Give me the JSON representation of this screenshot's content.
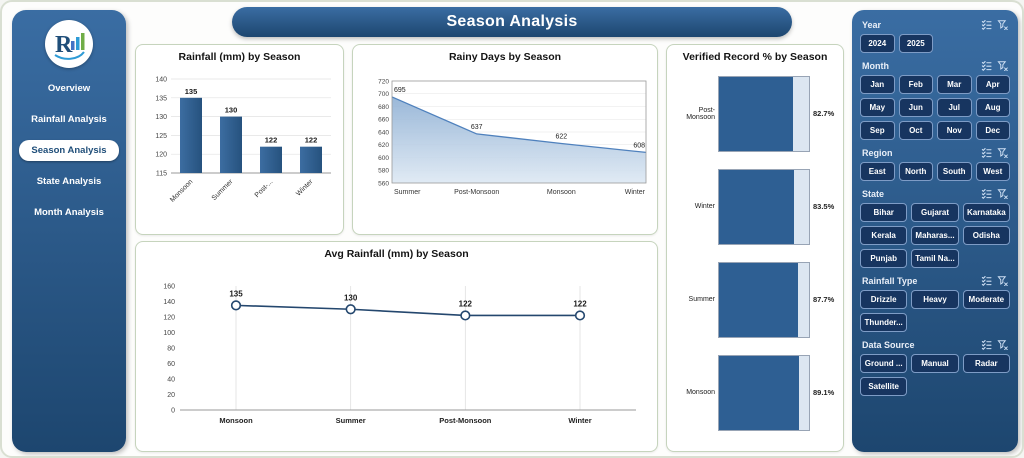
{
  "header": {
    "title": "Season Analysis"
  },
  "logo": {
    "letter": "R"
  },
  "colors": {
    "navy": "#1F4E79",
    "panel_top": "#3A6DA3",
    "panel_bottom": "#1D466F",
    "button": "#173560",
    "bar": "#2E5F93",
    "track": "#DCE6F1"
  },
  "sidebar": {
    "items": [
      {
        "label": "Overview",
        "active": false
      },
      {
        "label": "Rainfall Analysis",
        "active": false
      },
      {
        "label": "Season Analysis",
        "active": true
      },
      {
        "label": "State Analysis",
        "active": false
      },
      {
        "label": "Month Analysis",
        "active": false
      }
    ]
  },
  "filters": {
    "sections": [
      {
        "title": "Year",
        "cols": 4,
        "options": [
          "2024",
          "2025"
        ]
      },
      {
        "title": "Month",
        "cols": 4,
        "options": [
          "Jan",
          "Feb",
          "Mar",
          "Apr",
          "May",
          "Jun",
          "Jul",
          "Aug",
          "Sep",
          "Oct",
          "Nov",
          "Dec"
        ]
      },
      {
        "title": "Region",
        "cols": 4,
        "options": [
          "East",
          "North",
          "South",
          "West"
        ]
      },
      {
        "title": "State",
        "cols": 3,
        "options": [
          "Bihar",
          "Gujarat",
          "Karnataka",
          "Kerala",
          "Maharas...",
          "Odisha",
          "Punjab",
          "Tamil Na..."
        ]
      },
      {
        "title": "Rainfall Type",
        "cols": 3,
        "options": [
          "Drizzle",
          "Heavy",
          "Moderate",
          "Thunder..."
        ]
      },
      {
        "title": "Data Source",
        "cols": 3,
        "options": [
          "Ground ...",
          "Manual",
          "Radar",
          "Satellite"
        ]
      }
    ]
  },
  "chart_data": [
    {
      "type": "bar",
      "title": "Rainfall (mm) by Season",
      "categories": [
        "Monsoon",
        "Summer",
        "Post-...",
        "Winter"
      ],
      "values": [
        135,
        130,
        122,
        122
      ],
      "ylim": [
        115,
        140
      ],
      "yticks": [
        115,
        120,
        125,
        130,
        135,
        140
      ],
      "bar_color": "#2E5F93",
      "grid": "horizontal"
    },
    {
      "type": "area",
      "title": "Rainy Days by Season",
      "categories": [
        "Summer",
        "Post-Monsoon",
        "Monsoon",
        "Winter"
      ],
      "values": [
        695,
        637,
        622,
        608
      ],
      "ylim": [
        560,
        720
      ],
      "yticks": [
        560,
        580,
        600,
        620,
        640,
        660,
        680,
        700,
        720
      ],
      "line_color": "#4F81BD",
      "fill_top": "#8FB0D4",
      "fill_bottom": "#DDE8F3",
      "grid": "horizontal"
    },
    {
      "type": "line",
      "title": "Avg Rainfall (mm) by Season",
      "categories": [
        "Monsoon",
        "Summer",
        "Post-Monsoon",
        "Winter"
      ],
      "values": [
        135,
        130,
        122,
        122
      ],
      "ylim": [
        0,
        160
      ],
      "yticks": [
        0,
        20,
        40,
        60,
        80,
        100,
        120,
        140,
        160
      ],
      "line_color": "#24476E",
      "grid": "vertical"
    },
    {
      "type": "hbar",
      "title": "Verified Record % by Season",
      "categories": [
        "Post-Monsoon",
        "Winter",
        "Summer",
        "Monsoon"
      ],
      "values": [
        82.7,
        83.5,
        87.7,
        89.1
      ],
      "labels": [
        "82.7%",
        "83.5%",
        "87.7%",
        "89.1%"
      ],
      "xlim": [
        0,
        100
      ],
      "bar_color": "#2E5F93",
      "track_color": "#DCE6F1"
    }
  ]
}
